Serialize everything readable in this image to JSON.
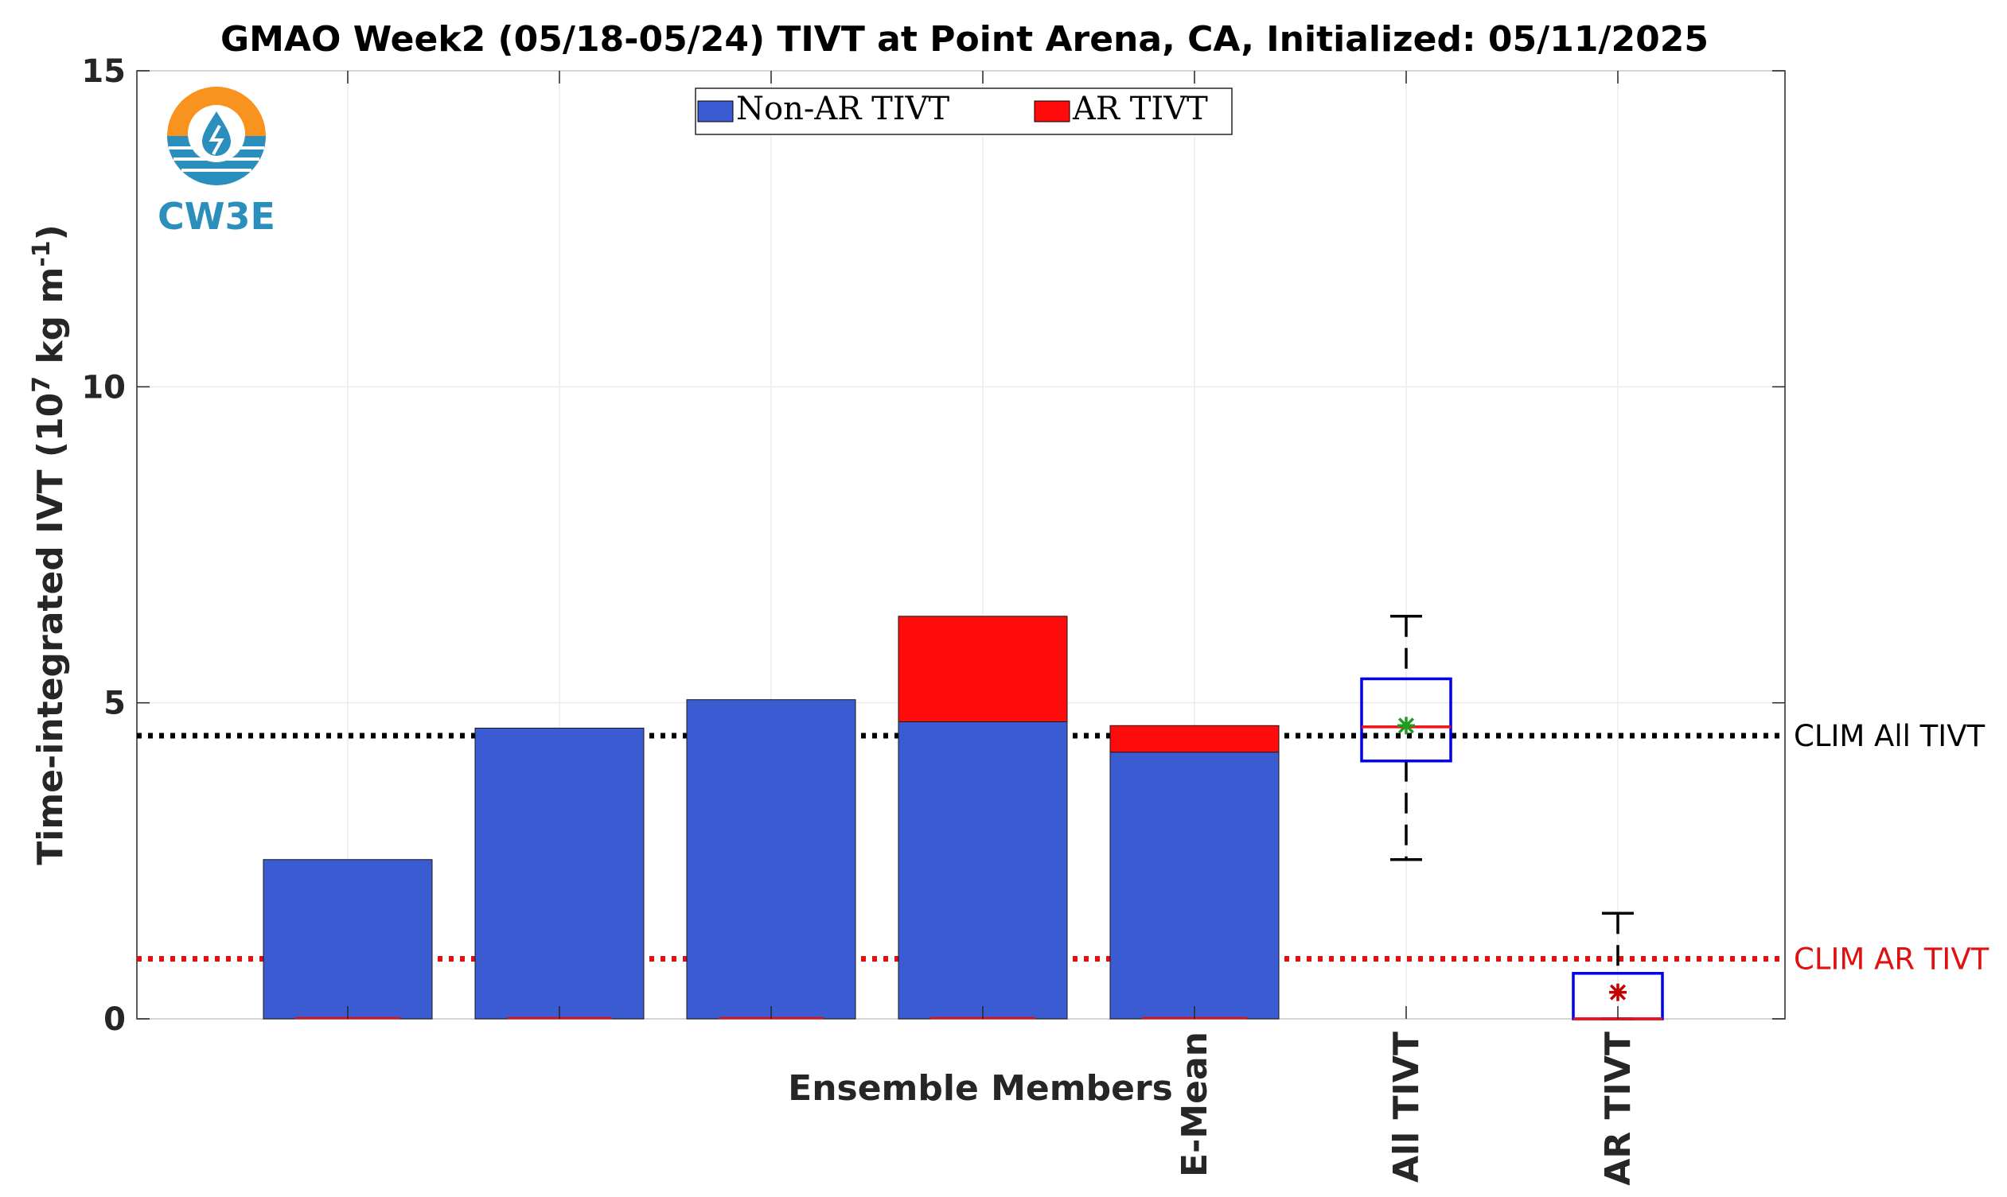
{
  "chart_data": {
    "type": "bar",
    "title": "GMAO Week2 (05/18-05/24) TIVT at Point Arena, CA, Initialized: 05/11/2025",
    "xlabel": "Ensemble Members",
    "ylabel": "Time-integrated IVT (10^7 kg m^-1)",
    "ylabel_parts": {
      "main": "Time-integrated IVT (10",
      "sup1": "7",
      "mid": " kg m",
      "sup2": "-1",
      "end": ")"
    },
    "ylim": [
      0,
      15
    ],
    "yticks": [
      "0",
      "5",
      "10",
      "15"
    ],
    "grid": true,
    "legend_position": "top",
    "categories": [
      "",
      "",
      "",
      "",
      "E-Mean",
      "All TIVT",
      "AR TIVT"
    ],
    "stacked_series": [
      {
        "name": "Non-AR TIVT",
        "color": "#3b5bd3",
        "values": [
          2.52,
          4.6,
          5.05,
          4.7,
          4.22
        ]
      },
      {
        "name": "AR TIVT",
        "color": "#ff0b0b",
        "values": [
          0,
          0,
          0,
          1.67,
          0.42
        ]
      }
    ],
    "boxplots": [
      {
        "category": "All TIVT",
        "min": 2.52,
        "q1": 4.08,
        "median": 4.62,
        "q3": 5.38,
        "max": 6.37,
        "mean": 4.64,
        "mean_color": "#1f9c1f"
      },
      {
        "category": "AR TIVT",
        "min": 0,
        "q1": 0,
        "median": 0,
        "q3": 0.72,
        "max": 1.67,
        "mean": 0.42,
        "mean_color": "#c00000"
      }
    ],
    "reference_lines": [
      {
        "label": "CLIM All TIVT",
        "value": 4.48,
        "color": "#000000"
      },
      {
        "label": "CLIM AR TIVT",
        "value": 0.95,
        "color": "#e01010"
      }
    ]
  },
  "logo": {
    "text": "CW3E",
    "orange": "#f7931e",
    "blue": "#2a8fbd"
  }
}
